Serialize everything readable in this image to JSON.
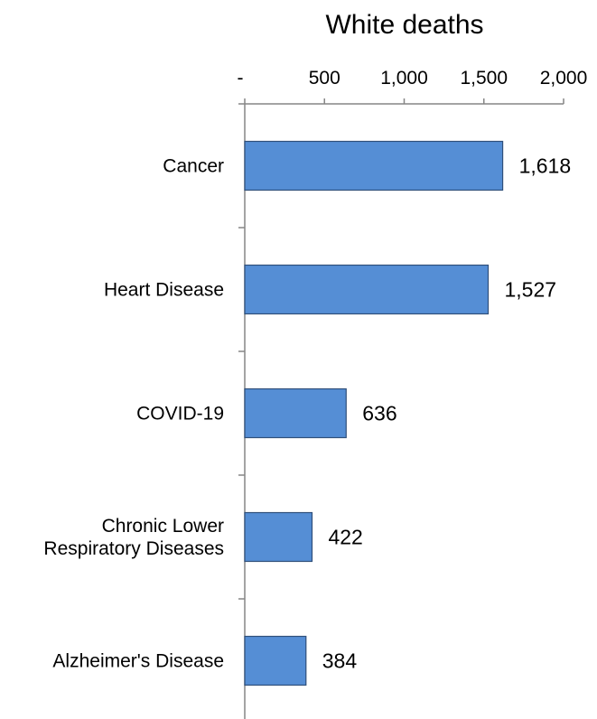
{
  "chart_data": {
    "type": "bar",
    "orientation": "horizontal",
    "title": "White deaths",
    "categories": [
      [
        "Cancer"
      ],
      [
        "Heart Disease"
      ],
      [
        "COVID-19"
      ],
      [
        "Chronic Lower",
        "Respiratory Diseases"
      ],
      [
        "Alzheimer's Disease"
      ]
    ],
    "values": [
      1618,
      1527,
      636,
      422,
      384
    ],
    "value_labels": [
      "1,618",
      "1,527",
      "636",
      "422",
      "384"
    ],
    "xlim": [
      0,
      2000
    ],
    "x_ticks": [
      0,
      500,
      1000,
      1500,
      2000
    ],
    "x_tick_labels": [
      "-",
      "500",
      "1,000",
      "1,500",
      "2,000"
    ],
    "axis_position": "top",
    "grid": false,
    "legend": "none",
    "bar_color": "#558ed5"
  }
}
